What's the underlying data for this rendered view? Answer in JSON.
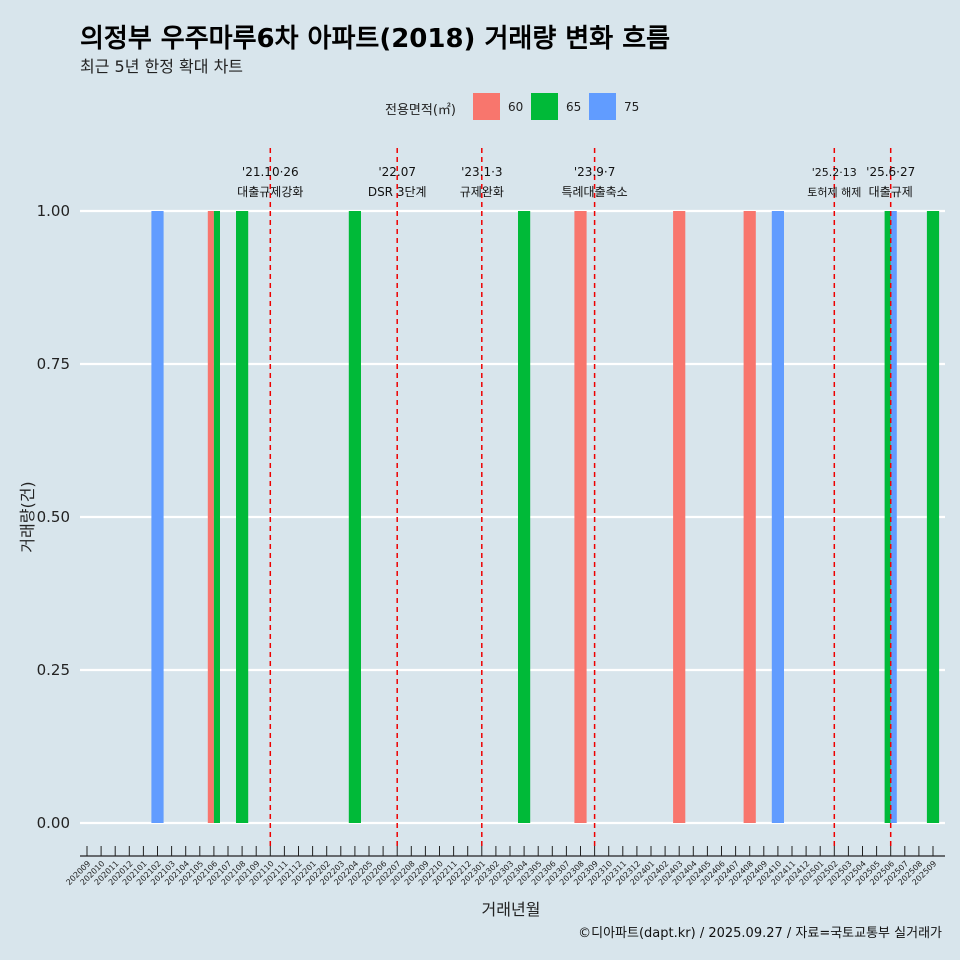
{
  "title": "의정부 우주마루6차 아파트(2018) 거래량 변화 흐름",
  "subtitle": "최근 5년 한정 확대 차트",
  "caption": "©디아파트(dapt.kr) / 2025.09.27 / 자료=국토교통부 실거래가",
  "legend": {
    "title": "전용면적(㎡)",
    "items": [
      {
        "label": "60",
        "color": "#f8766d"
      },
      {
        "label": "65",
        "color": "#00ba38"
      },
      {
        "label": "75",
        "color": "#619cff"
      }
    ]
  },
  "chart_data": {
    "type": "bar",
    "title": "의정부 우주마루6차 아파트(2018) 거래량 변화 흐름",
    "xlabel": "거래년월",
    "ylabel": "거래량(건)",
    "ylim": [
      0,
      1
    ],
    "yticks": [
      "0.00",
      "0.25",
      "0.50",
      "0.75",
      "1.00"
    ],
    "categories": [
      "202009",
      "202010",
      "202011",
      "202012",
      "202101",
      "202102",
      "202103",
      "202104",
      "202105",
      "202106",
      "202107",
      "202108",
      "202109",
      "202110",
      "202111",
      "202112",
      "202201",
      "202202",
      "202203",
      "202204",
      "202205",
      "202206",
      "202207",
      "202208",
      "202209",
      "202210",
      "202211",
      "202212",
      "202301",
      "202302",
      "202303",
      "202304",
      "202305",
      "202306",
      "202307",
      "202308",
      "202309",
      "202310",
      "202311",
      "202312",
      "202401",
      "202402",
      "202403",
      "202404",
      "202405",
      "202406",
      "202407",
      "202408",
      "202409",
      "202410",
      "202411",
      "202412",
      "202501",
      "202502",
      "202503",
      "202504",
      "202505",
      "202506",
      "202507",
      "202508",
      "202509"
    ],
    "series": [
      {
        "name": "60",
        "color": "#f8766d",
        "points": [
          {
            "x": "202106",
            "y": 1
          },
          {
            "x": "202308",
            "y": 1
          },
          {
            "x": "202403",
            "y": 1
          },
          {
            "x": "202408",
            "y": 1
          }
        ]
      },
      {
        "name": "65",
        "color": "#00ba38",
        "points": [
          {
            "x": "202106",
            "y": 1
          },
          {
            "x": "202108",
            "y": 1
          },
          {
            "x": "202204",
            "y": 1
          },
          {
            "x": "202304",
            "y": 1
          },
          {
            "x": "202506",
            "y": 1
          },
          {
            "x": "202509",
            "y": 1
          }
        ]
      },
      {
        "name": "75",
        "color": "#619cff",
        "points": [
          {
            "x": "202102",
            "y": 1
          },
          {
            "x": "202410",
            "y": 1
          },
          {
            "x": "202506",
            "y": 1
          }
        ]
      }
    ],
    "annotations": [
      {
        "x": "202110",
        "lines": [
          "'21.10·26",
          "대출규제강화"
        ],
        "small": false
      },
      {
        "x": "202207",
        "lines": [
          "'22.07",
          "DSR 3단계"
        ],
        "small": false
      },
      {
        "x": "202301",
        "lines": [
          "'23.1·3",
          "규제완화"
        ],
        "small": false
      },
      {
        "x": "202309",
        "lines": [
          "'23.9·7",
          "특례대출축소"
        ],
        "small": false
      },
      {
        "x": "202502",
        "lines": [
          "'25.2·13",
          "토허제 해제"
        ],
        "small": true
      },
      {
        "x": "202506",
        "lines": [
          "'25.6·27",
          "대출규제"
        ],
        "small": false
      }
    ]
  }
}
